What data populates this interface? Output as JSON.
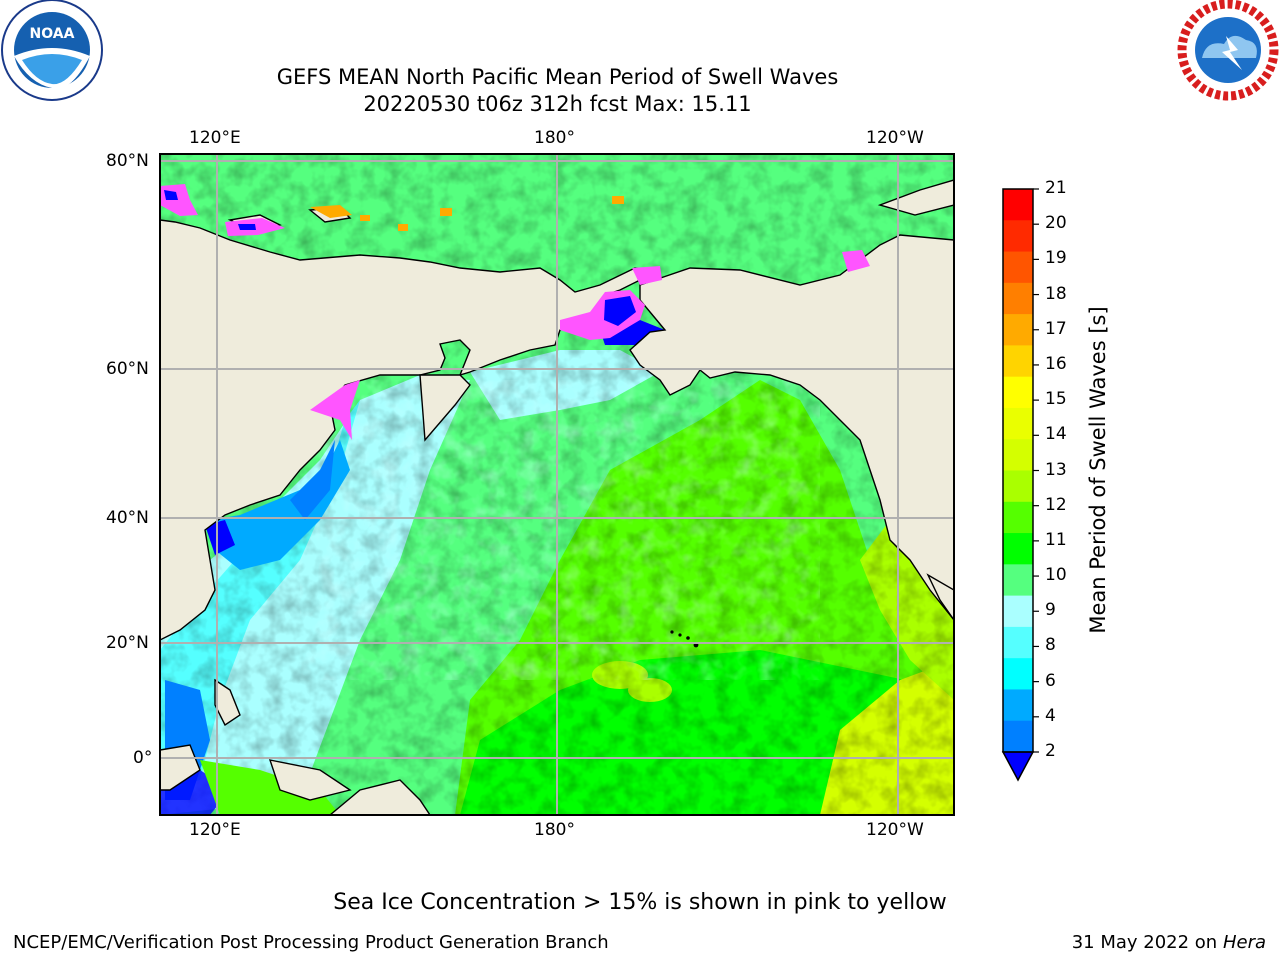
{
  "title": {
    "line1": "GEFS MEAN North Pacific Mean Period of Swell Waves",
    "line2": "20220530 t06z 312h fcst   Max: 15.11"
  },
  "logos": {
    "left": "NOAA",
    "left_ring": "NATIONAL OCEANIC AND ATMOSPHERIC ADMINISTRATION · U.S. DEPARTMENT OF COMMERCE",
    "right_ring": "NATIONAL WEATHER SERVICE"
  },
  "map": {
    "top_lon_labels": [
      "120°E",
      "180°",
      "120°W"
    ],
    "bottom_lon_labels": [
      "120°E",
      "180°",
      "120°W"
    ],
    "lat_labels": [
      "80°N",
      "60°N",
      "40°N",
      "20°N",
      "0°"
    ]
  },
  "colorbar": {
    "label": "Mean Period of Swell Waves [s]",
    "ticks": [
      "21",
      "20",
      "19",
      "18",
      "17",
      "16",
      "15",
      "14",
      "13",
      "12",
      "11",
      "10",
      "9",
      "8",
      "6",
      "4",
      "2"
    ],
    "colors": [
      "#ff0000",
      "#ff2a00",
      "#ff5500",
      "#ff7f00",
      "#ffaa00",
      "#ffd400",
      "#ffff00",
      "#eaff00",
      "#d4ff00",
      "#aaff00",
      "#55ff00",
      "#00ff00",
      "#55ff7f",
      "#aaffff",
      "#55ffff",
      "#00ffff",
      "#00aaff",
      "#0080ff"
    ],
    "extend_color": "#0000ff"
  },
  "note": "Sea Ice Concentration > 15% is shown in pink to yellow",
  "footer": {
    "left": "NCEP/EMC/Verification Post Processing Product Generation Branch",
    "right_date": "31 May 2022 on",
    "right_machine": "Hera"
  }
}
